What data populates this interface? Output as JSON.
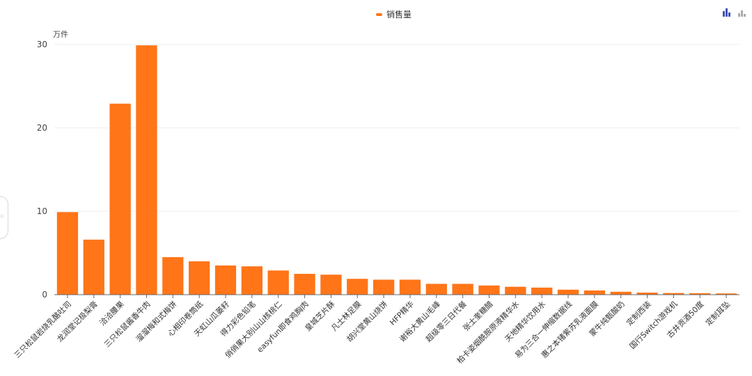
{
  "chart_data": {
    "type": "bar",
    "yunit": "万件",
    "legend_placement": "top-center",
    "grid": true,
    "ylim": [
      0,
      30
    ],
    "yticks": [
      "0",
      "10",
      "20",
      "30"
    ],
    "categories": [
      "三只松鼠岩烧乳酪吐司",
      "龙润堂记极梨膏",
      "洽洽腰果",
      "三只松鼠酱香牛肉",
      "溜溜梅和式梅饼",
      "心相印卷筒纸",
      "天虹山瓜蒌籽",
      "得力彩色铅笔",
      "俏俏果大别山山核桃仁",
      "easyfun即食鸡胸肉",
      "皇城芝片酥",
      "凡士林足膜",
      "胡兴堂黄山烧饼",
      "HFP精华",
      "谢裕大黄山毛峰",
      "超级零三日代餐",
      "张士奎糖醋",
      "柏卡姿烟酰胺原液精华水",
      "天地精华饮用水",
      "易为三合一伸缩数据线",
      "惠之本锗紫苏乳液面膜",
      "蒙牛纯甄酸奶",
      "定制西装",
      "国行Switch游戏机",
      "古井贡酒50度",
      "定制耳坠"
    ],
    "series": [
      {
        "name": "销售量",
        "color": "#ff7518",
        "values": [
          9.9,
          6.6,
          22.9,
          29.9,
          4.5,
          4.0,
          3.5,
          3.4,
          2.9,
          2.5,
          2.4,
          1.9,
          1.8,
          1.8,
          1.3,
          1.3,
          1.1,
          0.95,
          0.85,
          0.6,
          0.5,
          0.35,
          0.25,
          0.2,
          0.18,
          0.15
        ]
      }
    ]
  },
  "toolbox": {
    "icons": [
      "bar-chart-icon",
      "bar-chart-alt-icon"
    ],
    "active_color": "#3f51b5",
    "inactive_color": "#aaaaaa"
  }
}
